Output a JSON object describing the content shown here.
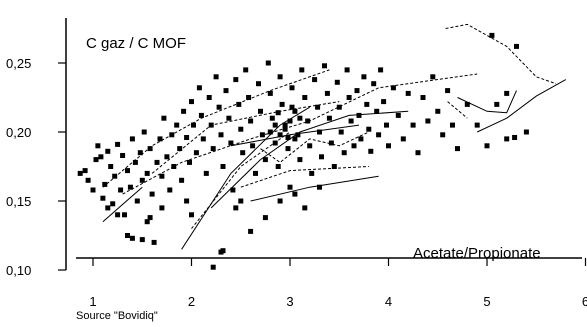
{
  "chart_data": {
    "type": "scatter",
    "title": "",
    "xlabel": "Acetate/Propionate",
    "ylabel": "C gaz / C MOF",
    "source_note": "Source \"Bovidiq\"",
    "xlim": [
      0.85,
      6.0
    ],
    "ylim": [
      0.1,
      0.27
    ],
    "xticks": [
      1,
      2,
      3,
      4,
      5,
      6
    ],
    "yticks": [
      0.1,
      0.15,
      0.2,
      0.25
    ],
    "ytick_labels": [
      "0,10",
      "0,15",
      "0,20",
      "0,25"
    ],
    "xtick_labels": [
      "1",
      "2",
      "3",
      "4",
      "5",
      "6"
    ],
    "grid": false,
    "colors": {
      "points": "#000000",
      "lines": "#000000"
    },
    "series": [
      {
        "marker": "square",
        "points": [
          [
            0.87,
            0.17
          ],
          [
            0.92,
            0.172
          ],
          [
            0.95,
            0.165
          ],
          [
            1.0,
            0.158
          ],
          [
            1.03,
            0.18
          ],
          [
            1.05,
            0.19
          ],
          [
            1.08,
            0.182
          ],
          [
            1.1,
            0.152
          ],
          [
            1.12,
            0.162
          ],
          [
            1.15,
            0.186
          ],
          [
            1.18,
            0.175
          ],
          [
            1.2,
            0.148
          ],
          [
            1.22,
            0.168
          ],
          [
            1.25,
            0.191
          ],
          [
            1.28,
            0.158
          ],
          [
            1.3,
            0.183
          ],
          [
            1.32,
            0.14
          ],
          [
            1.35,
            0.172
          ],
          [
            1.38,
            0.16
          ],
          [
            1.4,
            0.195
          ],
          [
            1.43,
            0.178
          ],
          [
            1.45,
            0.15
          ],
          [
            1.48,
            0.185
          ],
          [
            1.5,
            0.165
          ],
          [
            1.52,
            0.2
          ],
          [
            1.55,
            0.17
          ],
          [
            1.58,
            0.188
          ],
          [
            1.6,
            0.155
          ],
          [
            1.62,
            0.12
          ],
          [
            1.65,
            0.178
          ],
          [
            1.68,
            0.195
          ],
          [
            1.7,
            0.168
          ],
          [
            1.72,
            0.21
          ],
          [
            1.75,
            0.182
          ],
          [
            1.78,
            0.158
          ],
          [
            1.8,
            0.198
          ],
          [
            1.82,
            0.175
          ],
          [
            1.85,
            0.205
          ],
          [
            1.88,
            0.188
          ],
          [
            1.9,
            0.165
          ],
          [
            1.92,
            0.215
          ],
          [
            1.95,
            0.196
          ],
          [
            1.98,
            0.178
          ],
          [
            2.0,
            0.222
          ],
          [
            2.02,
            0.205
          ],
          [
            2.05,
            0.185
          ],
          [
            2.08,
            0.232
          ],
          [
            2.1,
            0.212
          ],
          [
            2.12,
            0.195
          ],
          [
            2.15,
            0.17
          ],
          [
            2.18,
            0.225
          ],
          [
            2.2,
            0.205
          ],
          [
            2.22,
            0.188
          ],
          [
            2.25,
            0.24
          ],
          [
            2.28,
            0.218
          ],
          [
            2.3,
            0.198
          ],
          [
            2.32,
            0.175
          ],
          [
            2.35,
            0.23
          ],
          [
            2.38,
            0.21
          ],
          [
            2.4,
            0.192
          ],
          [
            2.42,
            0.158
          ],
          [
            2.45,
            0.238
          ],
          [
            2.48,
            0.22
          ],
          [
            2.5,
            0.202
          ],
          [
            2.52,
            0.185
          ],
          [
            2.55,
            0.245
          ],
          [
            2.58,
            0.225
          ],
          [
            2.6,
            0.208
          ],
          [
            2.62,
            0.19
          ],
          [
            2.65,
            0.17
          ],
          [
            2.68,
            0.235
          ],
          [
            2.7,
            0.215
          ],
          [
            2.72,
            0.198
          ],
          [
            2.75,
            0.18
          ],
          [
            2.78,
            0.25
          ],
          [
            2.8,
            0.228
          ],
          [
            2.82,
            0.21
          ],
          [
            2.85,
            0.192
          ],
          [
            2.88,
            0.175
          ],
          [
            2.9,
            0.24
          ],
          [
            2.92,
            0.22
          ],
          [
            2.95,
            0.205
          ],
          [
            2.98,
            0.188
          ],
          [
            3.0,
            0.16
          ],
          [
            3.02,
            0.232
          ],
          [
            3.05,
            0.215
          ],
          [
            3.08,
            0.198
          ],
          [
            3.1,
            0.18
          ],
          [
            3.12,
            0.245
          ],
          [
            3.15,
            0.225
          ],
          [
            3.18,
            0.208
          ],
          [
            3.2,
            0.19
          ],
          [
            3.22,
            0.17
          ],
          [
            3.25,
            0.238
          ],
          [
            3.28,
            0.218
          ],
          [
            3.3,
            0.2
          ],
          [
            3.32,
            0.182
          ],
          [
            3.35,
            0.248
          ],
          [
            3.38,
            0.228
          ],
          [
            3.4,
            0.21
          ],
          [
            3.42,
            0.192
          ],
          [
            3.45,
            0.175
          ],
          [
            3.48,
            0.236
          ],
          [
            3.5,
            0.218
          ],
          [
            3.52,
            0.2
          ],
          [
            3.55,
            0.185
          ],
          [
            3.58,
            0.245
          ],
          [
            3.6,
            0.225
          ],
          [
            3.62,
            0.208
          ],
          [
            3.65,
            0.19
          ],
          [
            3.68,
            0.23
          ],
          [
            3.7,
            0.212
          ],
          [
            3.72,
            0.195
          ],
          [
            3.75,
            0.24
          ],
          [
            3.78,
            0.22
          ],
          [
            3.8,
            0.202
          ],
          [
            3.82,
            0.186
          ],
          [
            3.85,
            0.235
          ],
          [
            3.88,
            0.215
          ],
          [
            3.9,
            0.198
          ],
          [
            3.92,
            0.245
          ],
          [
            3.95,
            0.222
          ],
          [
            3.98,
            0.205
          ],
          [
            4.0,
            0.19
          ],
          [
            4.05,
            0.232
          ],
          [
            4.1,
            0.212
          ],
          [
            4.15,
            0.195
          ],
          [
            4.2,
            0.228
          ],
          [
            4.25,
            0.205
          ],
          [
            4.3,
            0.185
          ],
          [
            4.35,
            0.225
          ],
          [
            4.4,
            0.208
          ],
          [
            4.45,
            0.24
          ],
          [
            4.5,
            0.215
          ],
          [
            4.55,
            0.198
          ],
          [
            4.6,
            0.23
          ],
          [
            4.65,
            0.205
          ],
          [
            4.7,
            0.188
          ],
          [
            4.8,
            0.22
          ],
          [
            4.9,
            0.205
          ],
          [
            5.0,
            0.19
          ],
          [
            5.05,
            0.27
          ],
          [
            5.1,
            0.22
          ],
          [
            5.2,
            0.195
          ],
          [
            5.3,
            0.262
          ],
          [
            5.4,
            0.2
          ],
          [
            5.2,
            0.228
          ],
          [
            5.28,
            0.196
          ],
          [
            2.22,
            0.102
          ],
          [
            2.3,
            0.113
          ],
          [
            2.32,
            0.114
          ],
          [
            2.45,
            0.145
          ],
          [
            2.5,
            0.15
          ],
          [
            2.6,
            0.128
          ],
          [
            2.75,
            0.138
          ],
          [
            2.9,
            0.15
          ],
          [
            3.05,
            0.155
          ],
          [
            3.15,
            0.145
          ],
          [
            3.3,
            0.16
          ],
          [
            2.0,
            0.14
          ],
          [
            1.95,
            0.15
          ],
          [
            1.7,
            0.145
          ],
          [
            1.55,
            0.135
          ],
          [
            1.5,
            0.122
          ],
          [
            1.58,
            0.138
          ],
          [
            1.25,
            0.14
          ],
          [
            1.4,
            0.123
          ],
          [
            1.35,
            0.125
          ],
          [
            1.15,
            0.145
          ],
          [
            2.85,
            0.205
          ],
          [
            2.95,
            0.202
          ],
          [
            3.0,
            0.208
          ],
          [
            2.9,
            0.198
          ],
          [
            3.05,
            0.195
          ],
          [
            2.8,
            0.2
          ],
          [
            3.1,
            0.21
          ],
          [
            2.88,
            0.214
          ],
          [
            2.98,
            0.196
          ],
          [
            3.02,
            0.218
          ]
        ]
      }
    ],
    "line_segments": [
      [
        [
          1.1,
          0.16
        ],
        [
          1.6,
          0.19
        ],
        [
          2.1,
          0.21
        ],
        [
          2.8,
          0.23
        ],
        [
          3.4,
          0.245
        ]
      ],
      [
        [
          1.1,
          0.135
        ],
        [
          1.5,
          0.16
        ]
      ],
      [
        [
          1.6,
          0.17
        ],
        [
          2.2,
          0.205
        ],
        [
          2.9,
          0.215
        ],
        [
          3.5,
          0.222
        ]
      ],
      [
        [
          1.9,
          0.115
        ],
        [
          2.4,
          0.17
        ],
        [
          2.9,
          0.205
        ],
        [
          3.2,
          0.218
        ]
      ],
      [
        [
          2.0,
          0.13
        ],
        [
          2.5,
          0.175
        ],
        [
          3.0,
          0.2
        ]
      ],
      [
        [
          2.2,
          0.145
        ],
        [
          2.7,
          0.18
        ],
        [
          3.1,
          0.2
        ],
        [
          3.6,
          0.212
        ],
        [
          4.2,
          0.215
        ]
      ],
      [
        [
          2.5,
          0.16
        ],
        [
          3.0,
          0.172
        ],
        [
          3.8,
          0.175
        ]
      ],
      [
        [
          2.4,
          0.19
        ],
        [
          3.0,
          0.198
        ],
        [
          3.7,
          0.205
        ]
      ],
      [
        [
          1.3,
          0.155
        ],
        [
          1.9,
          0.178
        ],
        [
          2.6,
          0.195
        ],
        [
          3.2,
          0.208
        ],
        [
          3.9,
          0.232
        ],
        [
          4.9,
          0.242
        ]
      ],
      [
        [
          2.6,
          0.15
        ],
        [
          3.2,
          0.16
        ],
        [
          3.9,
          0.168
        ]
      ],
      [
        [
          4.6,
          0.222
        ],
        [
          4.8,
          0.21
        ]
      ],
      [
        [
          4.7,
          0.225
        ],
        [
          5.0,
          0.215
        ],
        [
          5.2,
          0.214
        ],
        [
          5.3,
          0.23
        ]
      ],
      [
        [
          4.58,
          0.275
        ],
        [
          4.8,
          0.278
        ],
        [
          5.2,
          0.262
        ],
        [
          5.5,
          0.24
        ],
        [
          5.7,
          0.235
        ]
      ],
      [
        [
          4.9,
          0.2
        ],
        [
          5.2,
          0.21
        ],
        [
          5.5,
          0.226
        ],
        [
          5.8,
          0.238
        ]
      ],
      [
        [
          2.7,
          0.188
        ],
        [
          2.9,
          0.178
        ],
        [
          3.2,
          0.195
        ],
        [
          3.5,
          0.19
        ],
        [
          3.8,
          0.2
        ]
      ]
    ]
  }
}
